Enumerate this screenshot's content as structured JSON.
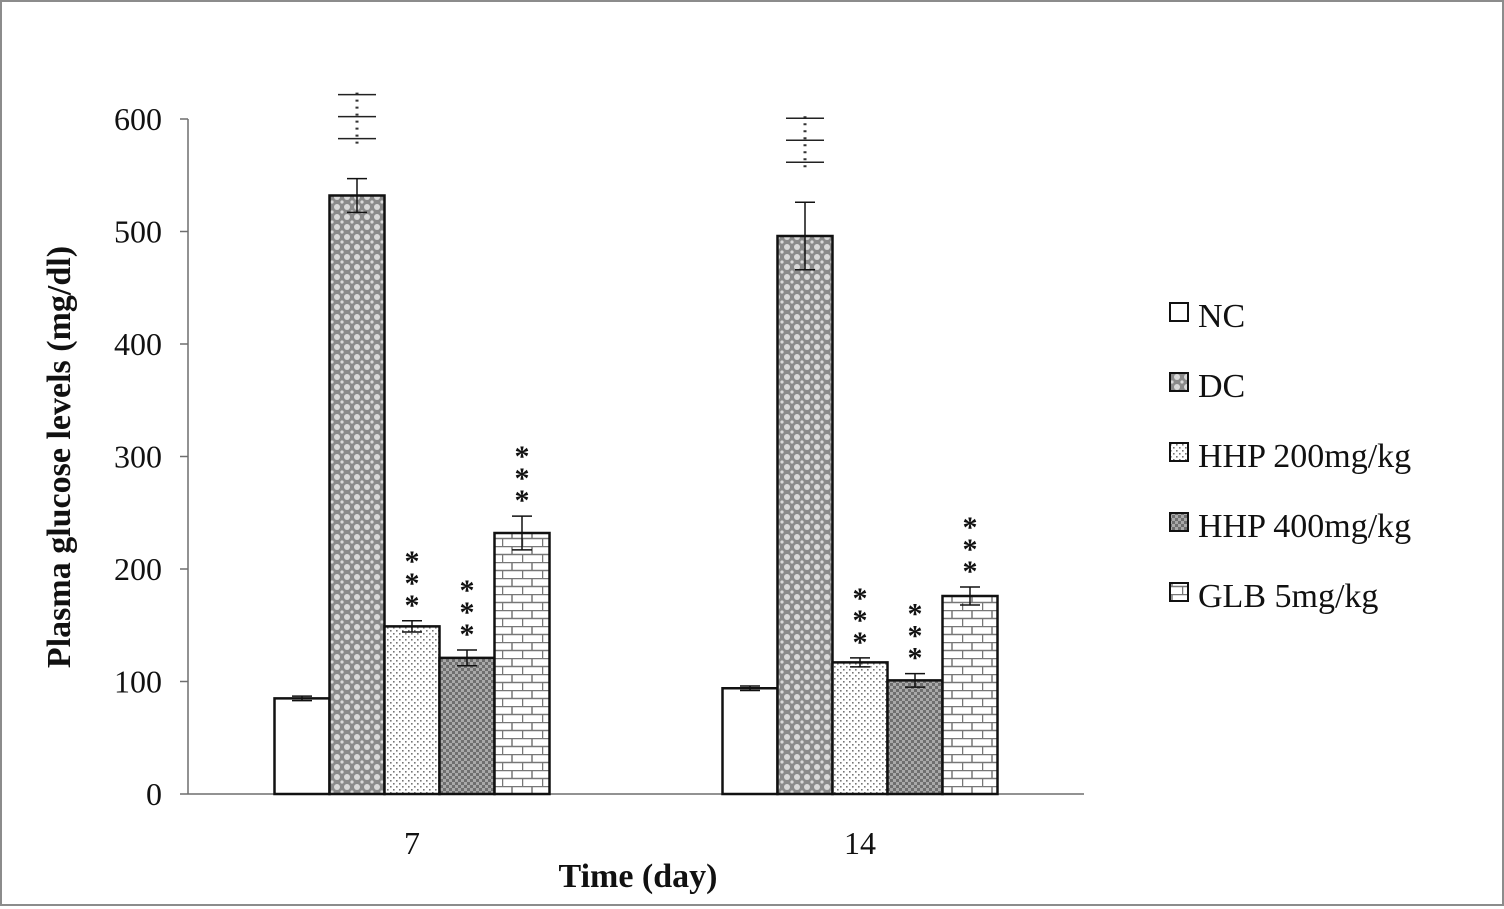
{
  "chart_data": {
    "type": "bar",
    "title": "",
    "xlabel": "Time (day)",
    "ylabel": "Plasma glucose levels (mg/dl)",
    "ylim": [
      0,
      600
    ],
    "yticks": [
      "0",
      "100",
      "200",
      "300",
      "400",
      "500",
      "600"
    ],
    "categories": [
      "7",
      "14"
    ],
    "legend_position": "right",
    "grid": false,
    "series": [
      {
        "name": "NC",
        "values": [
          85,
          94
        ],
        "errors": [
          2,
          2
        ],
        "pattern": "none",
        "significance": [
          "",
          ""
        ]
      },
      {
        "name": "DC",
        "values": [
          532,
          496
        ],
        "errors": [
          15,
          30
        ],
        "pattern": "dots",
        "significance": [
          "⁞⁞⁞",
          "⁞⁞⁞"
        ]
      },
      {
        "name": "HHP 200mg/kg",
        "values": [
          149,
          117
        ],
        "errors": [
          5,
          4
        ],
        "pattern": "sparse",
        "significance": [
          "***",
          "***"
        ]
      },
      {
        "name": "HHP 400mg/kg",
        "values": [
          121,
          101
        ],
        "errors": [
          7,
          6
        ],
        "pattern": "grid",
        "significance": [
          "***",
          "***"
        ]
      },
      {
        "name": "GLB 5mg/kg",
        "values": [
          232,
          176
        ],
        "errors": [
          15,
          8
        ],
        "pattern": "brick",
        "significance": [
          "***",
          "***"
        ]
      }
    ]
  }
}
